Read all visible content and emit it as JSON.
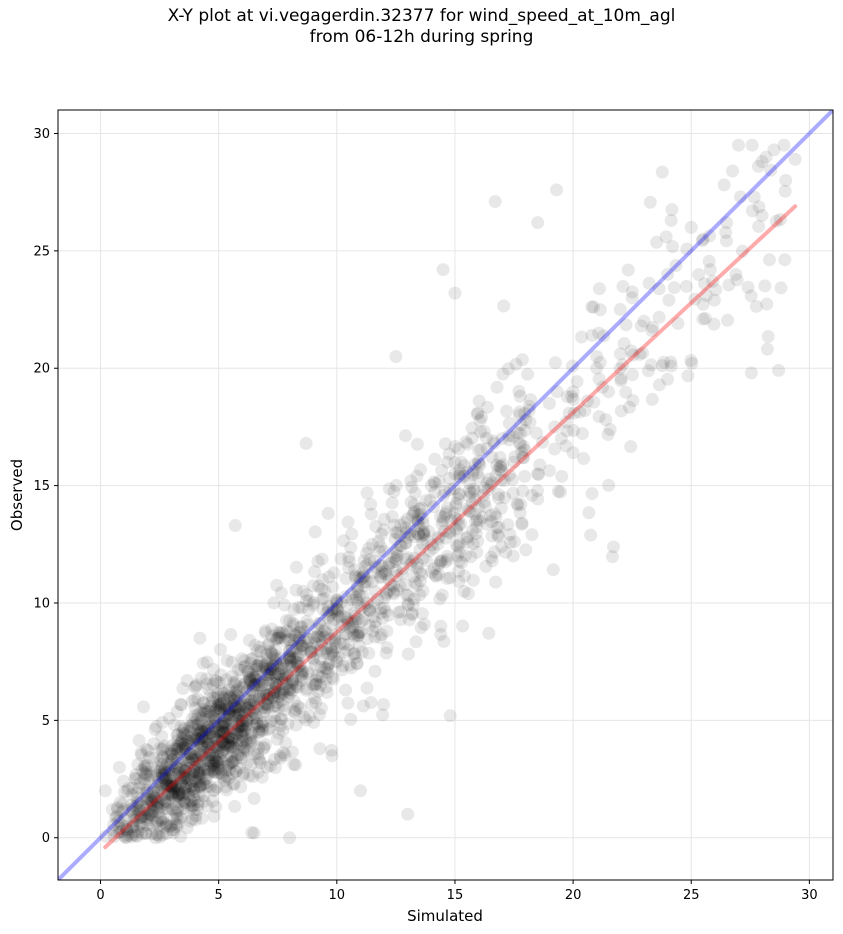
{
  "chart_data": {
    "type": "scatter",
    "title_line1": "X-Y plot at vi.vegagerdin.32377 for wind_speed_at_10m_agl",
    "title_line2": "from 06-12h during spring",
    "xlabel": "Simulated",
    "ylabel": "Observed",
    "xlim": [
      -1.8,
      31.0
    ],
    "ylim": [
      -1.8,
      31.0
    ],
    "xticks": [
      "0",
      "5",
      "10",
      "15",
      "20",
      "25",
      "30"
    ],
    "yticks": [
      "0",
      "5",
      "10",
      "15",
      "20",
      "25",
      "30"
    ],
    "grid": true,
    "point_color": "#000000",
    "lines": [
      {
        "kind": "identity",
        "color": "#0000ff",
        "x": [
          -1.8,
          31.0
        ],
        "y": [
          -1.8,
          31.0
        ]
      },
      {
        "kind": "regression",
        "color": "#ff0000",
        "x": [
          0.2,
          29.4
        ],
        "y": [
          -0.4,
          26.9
        ]
      }
    ],
    "sample_points": {
      "x": [
        0.2,
        0.5,
        0.8,
        1.0,
        1.5,
        2.0,
        2.5,
        3.0,
        3.5,
        4.0,
        4.5,
        5.0,
        5.5,
        6.0,
        6.5,
        7.0,
        7.5,
        8.0,
        8.5,
        9.0,
        9.5,
        10.0,
        10.5,
        11.0,
        11.5,
        12.0,
        12.5,
        13.0,
        13.5,
        14.0,
        14.5,
        15.0,
        15.5,
        16.0,
        16.5,
        17.0,
        17.5,
        18.0,
        18.5,
        19.0,
        19.5,
        20.0,
        20.5,
        21.0,
        21.5,
        22.0,
        22.5,
        23.0,
        24.0,
        25.0,
        25.5,
        26.5,
        27.0,
        28.0,
        28.5,
        29.0,
        29.4,
        5.7,
        8.7,
        12.5,
        14.5,
        15.0,
        16.7,
        18.5,
        19.3,
        8.0,
        13.0,
        6.5,
        11.0,
        14.8
      ],
      "y": [
        2.0,
        1.2,
        3.0,
        0.8,
        2.5,
        1.7,
        3.8,
        2.2,
        4.0,
        3.3,
        5.5,
        4.5,
        6.0,
        5.0,
        6.5,
        7.2,
        8.5,
        7.6,
        9.0,
        9.9,
        10.5,
        10.0,
        11.5,
        11.0,
        12.5,
        12.2,
        13.0,
        12.8,
        14.0,
        15.0,
        13.5,
        15.5,
        14.0,
        16.5,
        15.0,
        17.0,
        16.0,
        17.8,
        15.5,
        18.5,
        17.0,
        19.0,
        18.2,
        20.5,
        19.0,
        22.5,
        23.0,
        22.0,
        24.0,
        26.0,
        25.5,
        26.2,
        29.5,
        28.8,
        29.3,
        28.0,
        28.9,
        13.3,
        16.8,
        20.5,
        24.2,
        23.2,
        27.1,
        26.2,
        27.6,
        0.0,
        1.0,
        0.2,
        2.0,
        5.2
      ]
    }
  }
}
